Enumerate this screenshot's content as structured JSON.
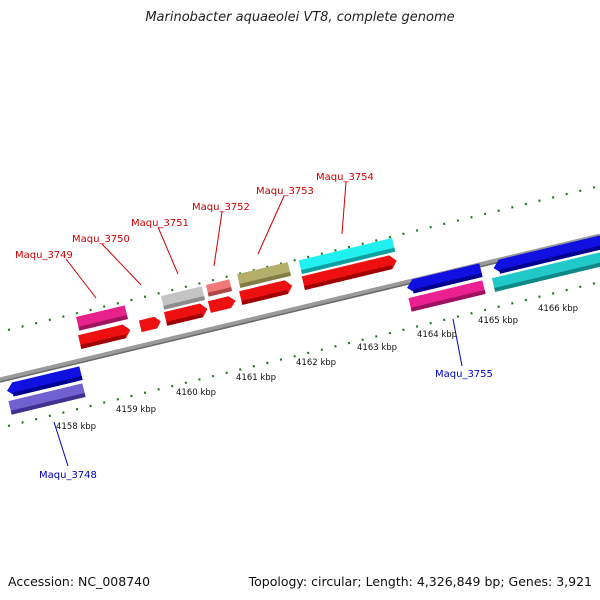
{
  "title": "Marinobacter aquaeolei VT8, complete genome",
  "footer": {
    "accession": "Accession: NC_008740",
    "topology": "Topology: circular; Length: 4,326,849 bp; Genes: 3,921"
  },
  "chart_data": {
    "type": "genome-map",
    "kbp_labels": [
      "4158 kbp",
      "4159 kbp",
      "4160 kbp",
      "4161 kbp",
      "4162 kbp",
      "4163 kbp",
      "4164 kbp",
      "4165 kbp",
      "4166 kbp"
    ],
    "top_labels": [
      "Maqu_3749",
      "Maqu_3750",
      "Maqu_3751",
      "Maqu_3752",
      "Maqu_3753",
      "Maqu_3754"
    ],
    "bottom_labels": [
      "Maqu_3748",
      "Maqu_3755"
    ],
    "colors": {
      "backbone": "#7a7a7a",
      "tick": "#1f7a1f",
      "top_label": "#cc0000",
      "bottom_label": "#0000bb"
    }
  }
}
